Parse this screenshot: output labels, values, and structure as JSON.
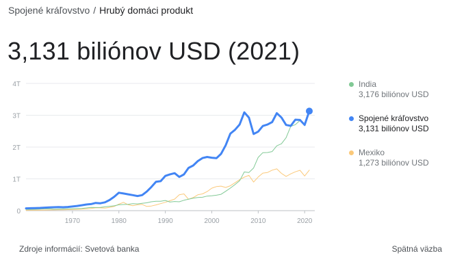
{
  "breadcrumb": {
    "country": "Spojené kráľovstvo",
    "separator": "/",
    "metric": "Hrubý domáci produkt"
  },
  "headline": "3,131 biliónov USD (2021)",
  "colors": {
    "uk": "#4285f4",
    "india": "#81c995",
    "mexico": "#fbc97a",
    "grid": "#e8eaed",
    "axis_text": "#9aa0a6"
  },
  "legend": [
    {
      "key": "india",
      "name": "India",
      "value": "3,176 biliónov USD",
      "color": "#81c995",
      "active": false
    },
    {
      "key": "uk",
      "name": "Spojené kráľovstvo",
      "value": "3,131 biliónov USD",
      "color": "#4285f4",
      "active": true
    },
    {
      "key": "mexico",
      "name": "Mexiko",
      "value": "1,273 biliónov USD",
      "color": "#fbc97a",
      "active": false
    }
  ],
  "chart_data": {
    "type": "line",
    "x": [
      1960,
      1961,
      1962,
      1963,
      1964,
      1965,
      1966,
      1967,
      1968,
      1969,
      1970,
      1971,
      1972,
      1973,
      1974,
      1975,
      1976,
      1977,
      1978,
      1979,
      1980,
      1981,
      1982,
      1983,
      1984,
      1985,
      1986,
      1987,
      1988,
      1989,
      1990,
      1991,
      1992,
      1993,
      1994,
      1995,
      1996,
      1997,
      1998,
      1999,
      2000,
      2001,
      2002,
      2003,
      2004,
      2005,
      2006,
      2007,
      2008,
      2009,
      2010,
      2011,
      2012,
      2013,
      2014,
      2015,
      2016,
      2017,
      2018,
      2019,
      2020,
      2021
    ],
    "series": [
      {
        "key": "uk",
        "name": "Spojené kráľovstvo",
        "emphasis": true,
        "values": [
          0.073,
          0.077,
          0.081,
          0.086,
          0.094,
          0.101,
          0.108,
          0.112,
          0.107,
          0.117,
          0.131,
          0.148,
          0.17,
          0.193,
          0.206,
          0.242,
          0.233,
          0.263,
          0.336,
          0.438,
          0.564,
          0.54,
          0.515,
          0.489,
          0.461,
          0.489,
          0.601,
          0.745,
          0.91,
          0.926,
          1.093,
          1.142,
          1.179,
          1.061,
          1.14,
          1.344,
          1.419,
          1.56,
          1.653,
          1.688,
          1.665,
          1.649,
          1.785,
          2.055,
          2.422,
          2.543,
          2.709,
          3.091,
          2.924,
          2.41,
          2.485,
          2.663,
          2.707,
          2.785,
          3.065,
          2.928,
          2.694,
          2.666,
          2.86,
          2.851,
          2.697,
          3.131
        ]
      },
      {
        "key": "india",
        "name": "India",
        "emphasis": false,
        "values": [
          0.037,
          0.039,
          0.042,
          0.048,
          0.056,
          0.059,
          0.045,
          0.05,
          0.053,
          0.058,
          0.063,
          0.067,
          0.071,
          0.085,
          0.1,
          0.099,
          0.103,
          0.121,
          0.137,
          0.153,
          0.186,
          0.193,
          0.201,
          0.219,
          0.213,
          0.232,
          0.248,
          0.279,
          0.296,
          0.296,
          0.321,
          0.27,
          0.288,
          0.279,
          0.327,
          0.36,
          0.392,
          0.415,
          0.421,
          0.458,
          0.468,
          0.485,
          0.515,
          0.608,
          0.709,
          0.82,
          0.94,
          1.217,
          1.199,
          1.342,
          1.676,
          1.823,
          1.828,
          1.857,
          2.039,
          2.104,
          2.295,
          2.651,
          2.703,
          2.836,
          2.668,
          3.176
        ]
      },
      {
        "key": "mexico",
        "name": "Mexiko",
        "emphasis": false,
        "values": [
          0.013,
          0.014,
          0.015,
          0.017,
          0.02,
          0.022,
          0.024,
          0.026,
          0.029,
          0.032,
          0.035,
          0.039,
          0.045,
          0.055,
          0.072,
          0.088,
          0.089,
          0.081,
          0.103,
          0.134,
          0.205,
          0.263,
          0.184,
          0.156,
          0.184,
          0.195,
          0.134,
          0.147,
          0.181,
          0.221,
          0.262,
          0.314,
          0.363,
          0.5,
          0.527,
          0.36,
          0.41,
          0.5,
          0.526,
          0.6,
          0.708,
          0.756,
          0.772,
          0.729,
          0.782,
          0.877,
          0.975,
          1.053,
          1.11,
          0.9,
          1.058,
          1.18,
          1.201,
          1.274,
          1.315,
          1.172,
          1.078,
          1.158,
          1.222,
          1.269,
          1.09,
          1.273
        ]
      }
    ],
    "y_ticks": [
      {
        "value": 0,
        "label": "0"
      },
      {
        "value": 1,
        "label": "1T"
      },
      {
        "value": 2,
        "label": "2T"
      },
      {
        "value": 3,
        "label": "3T"
      },
      {
        "value": 4,
        "label": "4T"
      }
    ],
    "x_ticks": [
      1970,
      1980,
      1990,
      2000,
      2010,
      2020
    ],
    "ylim": [
      0,
      4
    ],
    "xlim": [
      1960,
      2021
    ],
    "grid": true,
    "highlight_point": {
      "series": "uk",
      "x": 2021,
      "y": 3.131
    }
  },
  "footer": {
    "source": "Zdroje informácií: Svetová banka",
    "feedback": "Spätná väzba"
  }
}
